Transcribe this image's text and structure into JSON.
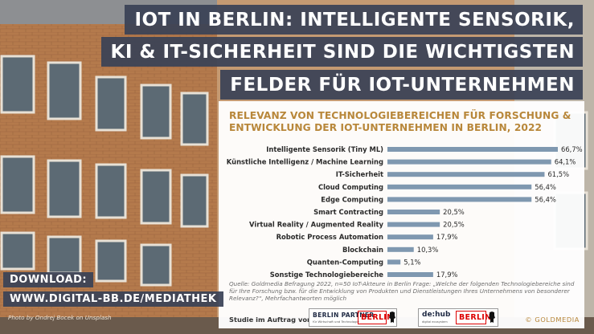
{
  "headline": {
    "line1": "IOT IN BERLIN: INTELLIGENTE SENSORIK,",
    "line2": "KI & IT-SICHERHEIT SIND DIE WICHTIGSTEN",
    "line3": "FELDER FÜR IOT-UNTERNEHMEN"
  },
  "chart_data": {
    "type": "bar",
    "title_line1": "RELEVANZ VON TECHNOLOGIEBEREICHEN FÜR FORSCHUNG &",
    "title_line2": "ENTWICKLUNG DER IOT-UNTERNEHMEN IN BERLIN, 2022",
    "categories": [
      "Intelligente Sensorik (Tiny ML)",
      "Künstliche Intelligenz / Machine Learning",
      "IT-Sicherheit",
      "Cloud Computing",
      "Edge Computing",
      "Smart Contracting",
      "Virtual Reality / Augmented Reality",
      "Robotic Process Automation",
      "Blockchain",
      "Quanten-Computing",
      "Sonstige Technologiebereiche"
    ],
    "values": [
      66.7,
      64.1,
      61.5,
      56.4,
      56.4,
      20.5,
      20.5,
      17.9,
      10.3,
      5.1,
      17.9
    ],
    "value_labels": [
      "66,7%",
      "64,1%",
      "61,5%",
      "56,4%",
      "56,4%",
      "20,5%",
      "20,5%",
      "17,9%",
      "10,3%",
      "5,1%",
      "17,9%"
    ],
    "orientation": "horizontal",
    "bar_color": "#7f98b0",
    "ylim": [
      0,
      70
    ]
  },
  "source_text": "Quelle: Goldmedia Befragung 2022, n=50 IoT-Akteure in Berlin Frage: „Welche der folgenden Technologiebereiche sind für Ihre Forschung bzw. für die Entwicklung von Produkten und Dienstleistungen Ihres Unternehmens von besonderer Relevanz?“, Mehrfachantworten möglich",
  "footer": {
    "label": "Studie im Auftrag von:",
    "logo1_name": "BERLIN PARTNER",
    "logo1_sub": "für Wirtschaft und Technologie",
    "logo_berlin": "BERLIN",
    "logo2_name": "de:hub",
    "logo2_sub": "digital ecosystem",
    "copyright": "© GOLDMEDIA"
  },
  "download": {
    "line1": "DOWNLOAD:",
    "line2": "WWW.DIGITAL-BB.DE/MEDIATHEK"
  },
  "photo_credit": "Photo by Ondrej Bocek on Unsplash",
  "colors": {
    "headline_bg": "#3a4256",
    "title_gold": "#b8873a",
    "bar": "#7f98b0"
  }
}
